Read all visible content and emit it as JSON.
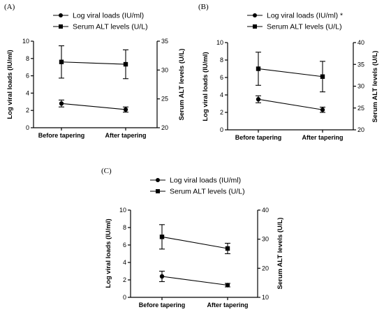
{
  "chart_data": [
    {
      "panel_label": "(A)",
      "type": "line",
      "categories": [
        "Before tapering",
        "After tapering"
      ],
      "ylabel_left": "Log viral loads (IU/ml)",
      "ylabel_right": "Serum ALT levels (U/L)",
      "ylim_left": [
        0,
        10
      ],
      "ylim_right": [
        20,
        35
      ],
      "yticks_left": [
        "0",
        "2",
        "4",
        "6",
        "8",
        "10"
      ],
      "yticks_right": [
        "20",
        "25",
        "30",
        "35"
      ],
      "series": [
        {
          "name": "Log viral loads (IU/ml)",
          "axis": "left",
          "marker": "circle",
          "values": [
            2.8,
            2.1
          ],
          "error": [
            0.4,
            0.3
          ]
        },
        {
          "name": "Serum ALT levels (U/L)",
          "axis": "right",
          "marker": "square",
          "values": [
            31.4,
            31.0
          ],
          "error": [
            2.8,
            2.5
          ]
        }
      ]
    },
    {
      "panel_label": "(B)",
      "type": "line",
      "categories": [
        "Before tapering",
        "After tapering"
      ],
      "ylabel_left": "Log viral loads (IU/ml)",
      "ylabel_right": "Serum ALT levels (U/L)",
      "ylim_left": [
        0,
        10
      ],
      "ylim_right": [
        20,
        40
      ],
      "yticks_left": [
        "0",
        "2",
        "4",
        "6",
        "8",
        "10"
      ],
      "yticks_right": [
        "20",
        "25",
        "30",
        "35",
        "40"
      ],
      "series": [
        {
          "name": "Log viral loads (IU/ml) *",
          "axis": "left",
          "marker": "circle",
          "values": [
            3.5,
            2.3
          ],
          "error": [
            0.4,
            0.3
          ]
        },
        {
          "name": "Serum ALT levels (U/L)",
          "axis": "right",
          "marker": "square",
          "values": [
            34.0,
            32.2
          ],
          "error": [
            3.8,
            3.5
          ]
        }
      ]
    },
    {
      "panel_label": "(C)",
      "type": "line",
      "categories": [
        "Before tapering",
        "After tapering"
      ],
      "ylabel_left": "Log viral loads (IU/ml)",
      "ylabel_right": "Serum ALT levels (U/L)",
      "ylim_left": [
        0,
        10
      ],
      "ylim_right": [
        10,
        40
      ],
      "yticks_left": [
        "0",
        "2",
        "4",
        "6",
        "8",
        "10"
      ],
      "yticks_right": [
        "10",
        "20",
        "30",
        "40"
      ],
      "series": [
        {
          "name": "Log viral loads (IU/ml)",
          "axis": "left",
          "marker": "circle",
          "values": [
            2.4,
            1.4
          ],
          "error": [
            0.6,
            0.2
          ]
        },
        {
          "name": "Serum ALT levels (U/L)",
          "axis": "right",
          "marker": "square",
          "values": [
            30.8,
            26.8
          ],
          "error": [
            4.2,
            1.8
          ]
        }
      ]
    }
  ]
}
